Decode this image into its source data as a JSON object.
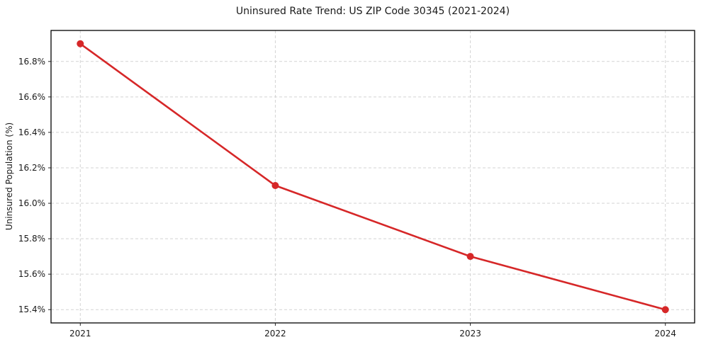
{
  "chart_data": {
    "type": "line",
    "title": "Uninsured Rate Trend: US ZIP Code 30345 (2021-2024)",
    "xlabel": "",
    "ylabel": "Uninsured Population (%)",
    "x": [
      2021,
      2022,
      2023,
      2024
    ],
    "series": [
      {
        "name": "Uninsured rate",
        "values": [
          16.9,
          16.1,
          15.7,
          15.4
        ]
      }
    ],
    "xticks": [
      2021,
      2022,
      2023,
      2024
    ],
    "xtick_labels": [
      "2021",
      "2022",
      "2023",
      "2024"
    ],
    "yticks": [
      15.4,
      15.6,
      15.8,
      16.0,
      16.2,
      16.4,
      16.6,
      16.8
    ],
    "ytick_labels": [
      "15.4%",
      "15.6%",
      "15.8%",
      "16.0%",
      "16.2%",
      "16.4%",
      "16.6%",
      "16.8%"
    ],
    "xlim": [
      2020.85,
      2024.15
    ],
    "ylim": [
      15.325,
      16.975
    ],
    "grid": true,
    "legend": "none",
    "line_color": "#d62728",
    "marker": "circle",
    "marker_radius": 5
  }
}
